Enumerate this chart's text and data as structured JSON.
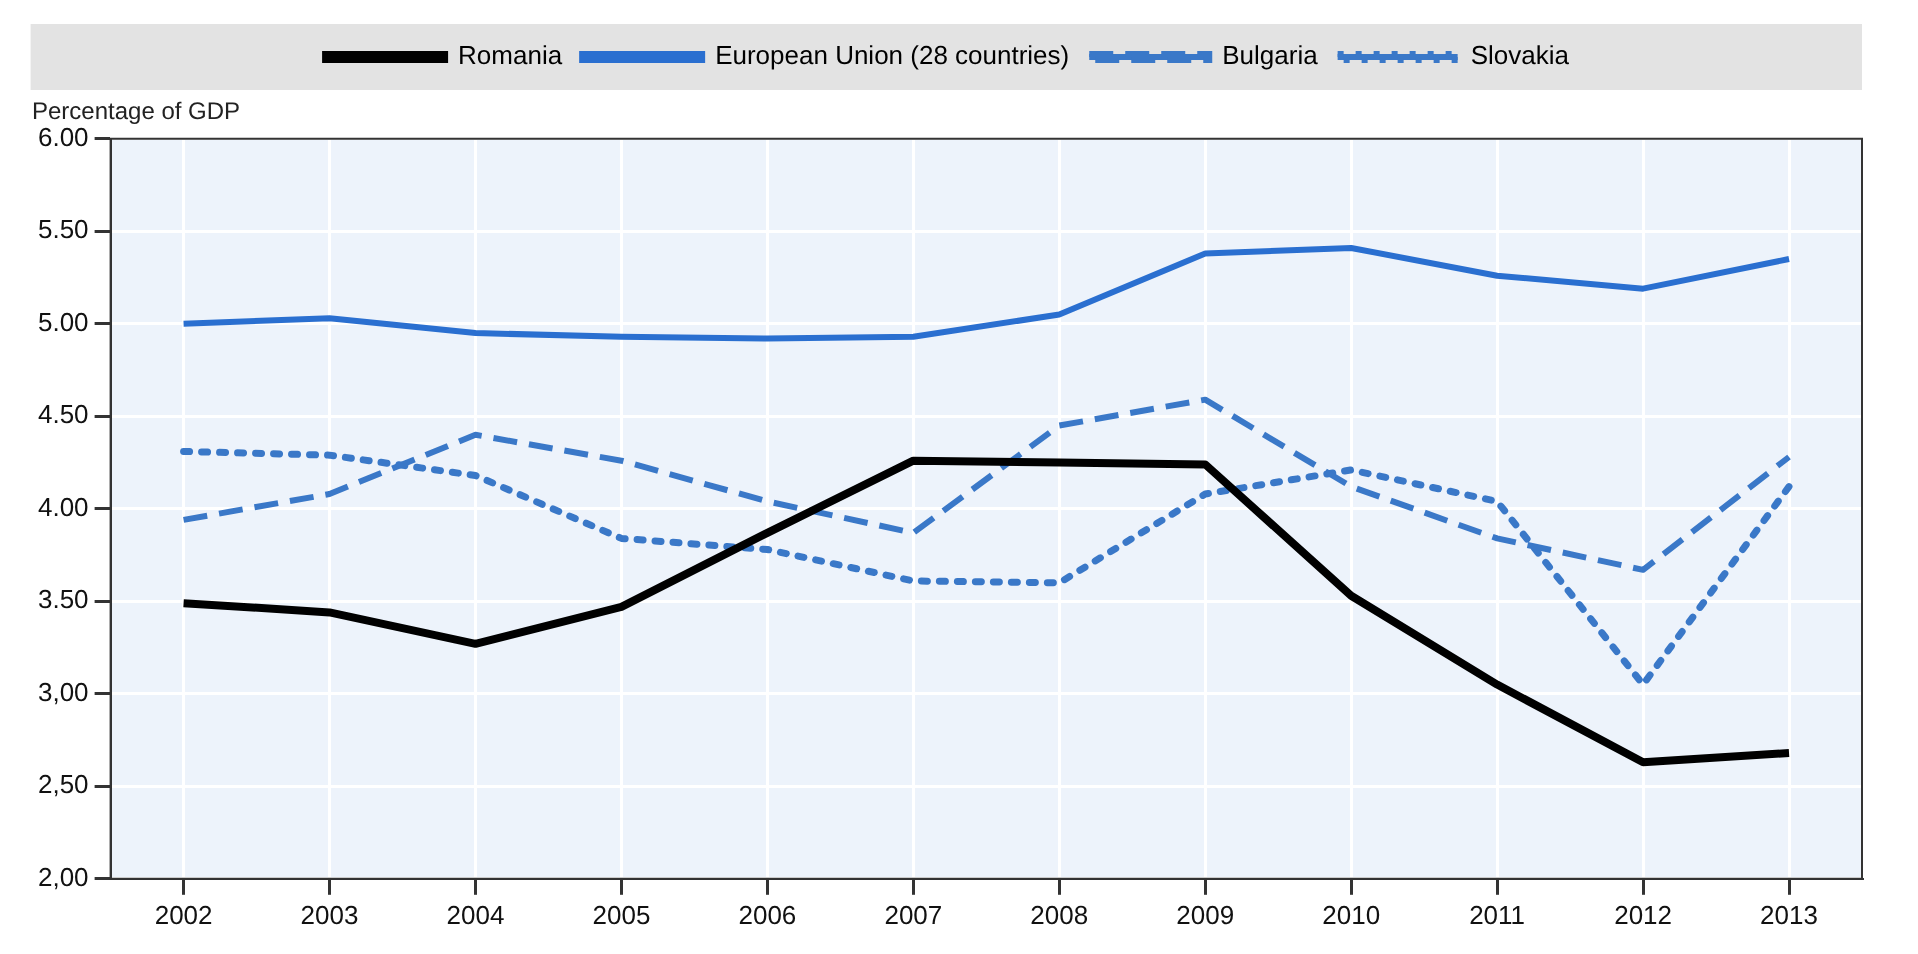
{
  "chart_data": {
    "type": "line",
    "ylabel": "Percentage of GDP",
    "categories": [
      "2002",
      "2003",
      "2004",
      "2005",
      "2006",
      "2007",
      "2008",
      "2009",
      "2010",
      "2011",
      "2012",
      "2013"
    ],
    "series": [
      {
        "name": "Romania",
        "color": "#000000",
        "line_style": "solid",
        "values": [
          3.49,
          3.44,
          3.27,
          3.47,
          3.87,
          4.26,
          4.25,
          4.24,
          3.53,
          3.05,
          2.63,
          2.68
        ]
      },
      {
        "name": "European Union (28 countries)",
        "color": "#2a6fd0",
        "line_style": "solid",
        "values": [
          5.0,
          5.03,
          4.95,
          4.93,
          4.92,
          4.93,
          5.05,
          5.38,
          5.41,
          5.26,
          5.19,
          5.35
        ]
      },
      {
        "name": "Bulgaria",
        "color": "#3a78c8",
        "line_style": "dashed",
        "values": [
          3.94,
          4.08,
          4.4,
          4.26,
          4.04,
          3.87,
          4.45,
          4.59,
          4.12,
          3.84,
          3.67,
          4.28
        ]
      },
      {
        "name": "Slovakia",
        "color": "#3a78c8",
        "line_style": "dotted",
        "values": [
          4.31,
          4.29,
          4.18,
          3.84,
          3.78,
          3.61,
          3.6,
          4.08,
          4.21,
          4.04,
          3.05,
          4.12
        ]
      }
    ],
    "ylim": [
      2,
      6
    ],
    "yticks": [
      {
        "value": 2,
        "label": "2,00"
      },
      {
        "value": 2.5,
        "label": "2,50"
      },
      {
        "value": 3,
        "label": "3,00"
      },
      "3.50",
      "4.00",
      "4.50",
      "5.00",
      "5.50",
      "6.00"
    ],
    "grid": true,
    "legend": "top",
    "marker": "none"
  }
}
